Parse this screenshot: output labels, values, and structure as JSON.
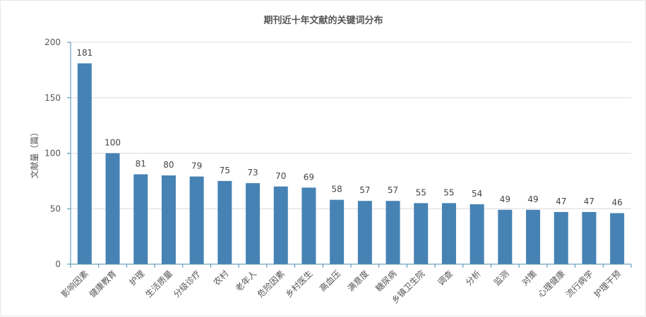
{
  "chart_data": {
    "type": "bar",
    "title": "期刊近十年文献的关键词分布",
    "xlabel": "",
    "ylabel": "文献量（篇）",
    "ylim": [
      0,
      200
    ],
    "yticks": [
      0,
      50,
      100,
      150,
      200
    ],
    "grid": true,
    "legend": "none",
    "bar_color": "#4682b4",
    "categories": [
      "影响因素",
      "健康教育",
      "护理",
      "生活质量",
      "分级诊疗",
      "农村",
      "老年人",
      "危险因素",
      "乡村医生",
      "高血压",
      "满意度",
      "糖尿病",
      "乡镇卫生院",
      "调查",
      "分析",
      "监测",
      "对策",
      "心理健康",
      "流行病学",
      "护理干预"
    ],
    "values": [
      181,
      100,
      81,
      80,
      79,
      75,
      73,
      70,
      69,
      58,
      57,
      57,
      55,
      55,
      54,
      49,
      49,
      47,
      47,
      46
    ]
  }
}
